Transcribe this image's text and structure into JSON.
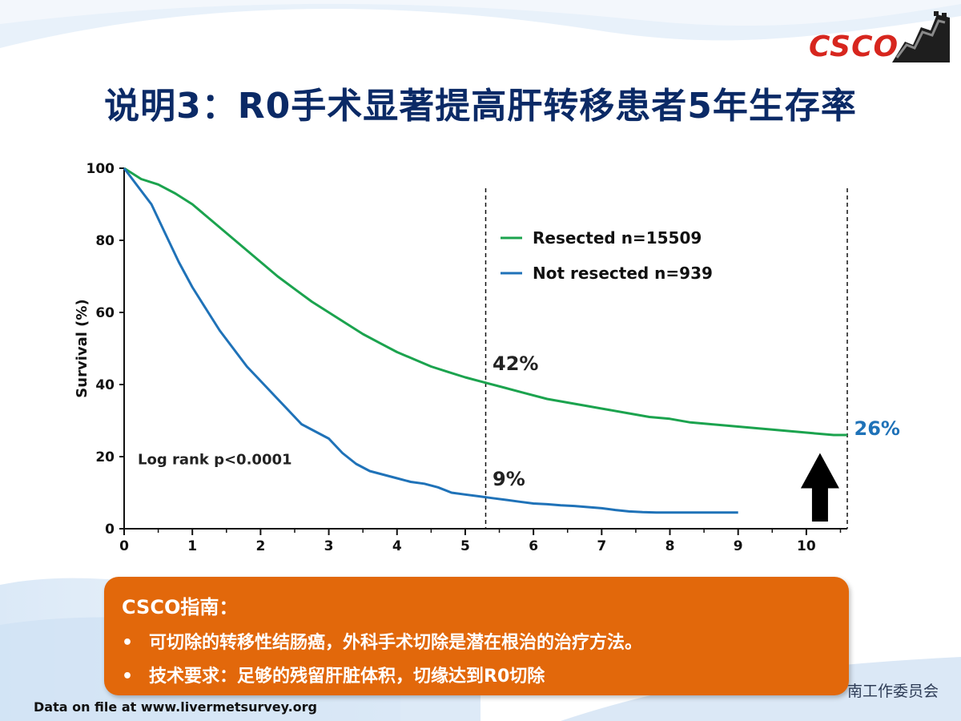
{
  "slide": {
    "title": "说明3：R0手术显著提高肝转移患者5年生存率",
    "logo_text": "CSCO",
    "colors": {
      "title": "#0b2a66",
      "box": "#e2680b",
      "logo": "#d7261e"
    }
  },
  "chart_data": {
    "type": "line",
    "ylabel": "Survival  (%)",
    "xlim": [
      0,
      10.6
    ],
    "ylim": [
      0,
      100
    ],
    "x_ticks": [
      0,
      1,
      2,
      3,
      4,
      5,
      6,
      7,
      8,
      9,
      10
    ],
    "y_ticks": [
      0,
      20,
      40,
      60,
      80,
      100
    ],
    "grid": false,
    "legend_position": "top-right",
    "series": [
      {
        "name": "Resected n=15509",
        "color": "#1ba34e",
        "x": [
          0,
          0.25,
          0.5,
          0.75,
          1,
          1.25,
          1.5,
          1.75,
          2,
          2.25,
          2.5,
          2.75,
          3,
          3.25,
          3.5,
          3.75,
          4,
          4.25,
          4.5,
          4.75,
          5,
          5.3,
          5.6,
          5.9,
          6.2,
          6.5,
          6.8,
          7.1,
          7.4,
          7.7,
          8,
          8.3,
          8.6,
          8.9,
          9.2,
          9.5,
          9.8,
          10.1,
          10.4,
          10.6
        ],
        "y": [
          100,
          97,
          95.5,
          93,
          90,
          86,
          82,
          78,
          74,
          70,
          66.5,
          63,
          60,
          57,
          54,
          51.5,
          49,
          47,
          45,
          43.5,
          42,
          40.5,
          39,
          37.5,
          36,
          35,
          34,
          33,
          32,
          31,
          30.5,
          29.5,
          29,
          28.5,
          28,
          27.5,
          27,
          26.5,
          26,
          26
        ]
      },
      {
        "name": "Not resected n=939",
        "color": "#1f72b8",
        "x": [
          0,
          0.2,
          0.4,
          0.6,
          0.8,
          1,
          1.2,
          1.4,
          1.6,
          1.8,
          2,
          2.2,
          2.4,
          2.6,
          2.8,
          3,
          3.2,
          3.4,
          3.6,
          3.8,
          4,
          4.2,
          4.4,
          4.6,
          4.8,
          5,
          5.2,
          5.4,
          5.6,
          5.8,
          6,
          6.2,
          6.4,
          6.6,
          6.8,
          7,
          7.2,
          7.4,
          7.6,
          7.8,
          8,
          8.5,
          9
        ],
        "y": [
          100,
          95,
          90,
          82,
          74,
          67,
          61,
          55,
          50,
          45,
          41,
          37,
          33,
          29,
          27,
          25,
          21,
          18,
          16,
          15,
          14,
          13,
          12.5,
          11.5,
          10,
          9.5,
          9,
          8.5,
          8,
          7.5,
          7,
          6.8,
          6.5,
          6.3,
          6,
          5.7,
          5.2,
          4.8,
          4.6,
          4.5,
          4.5,
          4.5,
          4.5
        ]
      }
    ],
    "reference_lines": [
      {
        "x": 5.3,
        "style": "dashed"
      },
      {
        "x": 10.6,
        "style": "dashed"
      }
    ],
    "annotations": [
      {
        "text": "42%",
        "x": 5.4,
        "y": 44,
        "color": "#222222"
      },
      {
        "text": "9%",
        "x": 5.4,
        "y": 12,
        "color": "#222222"
      },
      {
        "text": "26%",
        "x": 10.7,
        "y": 26,
        "color": "#1f72b8"
      },
      {
        "text": "Log rank p<0.0001",
        "x": 0.2,
        "y": 19,
        "color": "#222222"
      }
    ],
    "arrow": {
      "x": 10.2,
      "y_bottom": 2,
      "y_top": 21,
      "color": "#000000"
    }
  },
  "guideline": {
    "heading": "CSCO指南：",
    "bullets": [
      "可切除的转移性结肠癌，外科手术切除是潜在根治的治疗方法。",
      "技术要求：足够的残留肝脏体积，切缘达到R0切除"
    ],
    "bullet_symbol": "•"
  },
  "footer": {
    "source": "Data on file at www.livermetsurvey.org",
    "committee": "南工作委员会"
  }
}
